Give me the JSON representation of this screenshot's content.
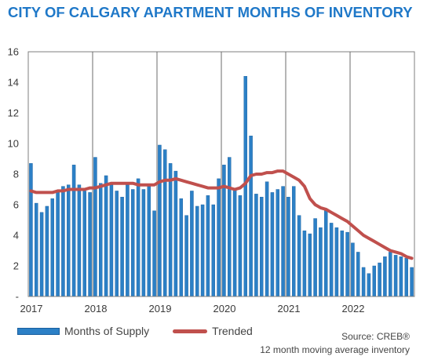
{
  "header": {
    "title": "CITY OF CALGARY APARTMENT MONTHS OF INVENTORY"
  },
  "legend": {
    "bars_label": "Months of Supply",
    "line_label": "Trended"
  },
  "source": {
    "line1": "Source: CREB®",
    "line2": "12 month moving average inventory"
  },
  "colors": {
    "title": "#1f78c8",
    "bars": "#2c80c6",
    "bar_edge": "#1a5f9e",
    "trend": "#c0504d",
    "gridline": "#6b6b6b"
  },
  "chart_data": {
    "type": "bar",
    "title": "CITY OF CALGARY APARTMENT MONTHS OF INVENTORY",
    "xlabel": "",
    "ylabel": "",
    "ylim": [
      0,
      16
    ],
    "yticks": [
      "-",
      "2",
      "4",
      "6",
      "8",
      "10",
      "12",
      "14",
      "16"
    ],
    "year_labels": [
      "2017",
      "2018",
      "2019",
      "2020",
      "2021",
      "2022"
    ],
    "vertical_gridlines_at_year_start": true,
    "legend_position": "bottom",
    "series": [
      {
        "name": "Months of Supply",
        "type": "bar",
        "values": [
          8.7,
          6.1,
          5.5,
          5.9,
          6.4,
          6.9,
          7.2,
          7.3,
          8.6,
          7.3,
          6.9,
          6.8,
          9.1,
          7.4,
          7.9,
          7.3,
          6.9,
          6.5,
          7.3,
          7.0,
          7.7,
          7.0,
          7.2,
          5.6,
          9.9,
          9.6,
          8.7,
          8.2,
          6.4,
          5.3,
          6.9,
          5.9,
          6.0,
          6.6,
          6.0,
          7.7,
          8.6,
          9.1,
          7.0,
          6.6,
          14.4,
          10.5,
          6.7,
          6.5,
          7.5,
          6.8,
          7.0,
          7.2,
          6.5,
          7.2,
          5.3,
          4.3,
          4.1,
          5.1,
          4.5,
          5.6,
          4.8,
          4.5,
          4.3,
          4.2,
          3.5,
          2.9,
          1.9,
          1.5,
          2.0,
          2.2,
          2.6,
          2.9,
          2.7,
          2.6,
          2.5,
          1.9
        ]
      },
      {
        "name": "Trended",
        "type": "line",
        "values": [
          6.9,
          6.8,
          6.8,
          6.8,
          6.8,
          6.9,
          6.9,
          7.0,
          7.0,
          7.0,
          7.0,
          7.1,
          7.1,
          7.2,
          7.3,
          7.4,
          7.4,
          7.4,
          7.4,
          7.4,
          7.3,
          7.3,
          7.3,
          7.3,
          7.5,
          7.6,
          7.6,
          7.7,
          7.6,
          7.5,
          7.4,
          7.3,
          7.2,
          7.1,
          7.1,
          7.1,
          7.2,
          7.1,
          7.0,
          7.1,
          7.4,
          7.9,
          8.0,
          8.0,
          8.1,
          8.1,
          8.2,
          8.2,
          8.0,
          7.8,
          7.6,
          7.2,
          6.4,
          6.0,
          5.8,
          5.7,
          5.5,
          5.3,
          5.1,
          4.9,
          4.6,
          4.3,
          4.0,
          3.8,
          3.6,
          3.4,
          3.2,
          3.0,
          2.9,
          2.8,
          2.6,
          2.5
        ]
      }
    ]
  }
}
